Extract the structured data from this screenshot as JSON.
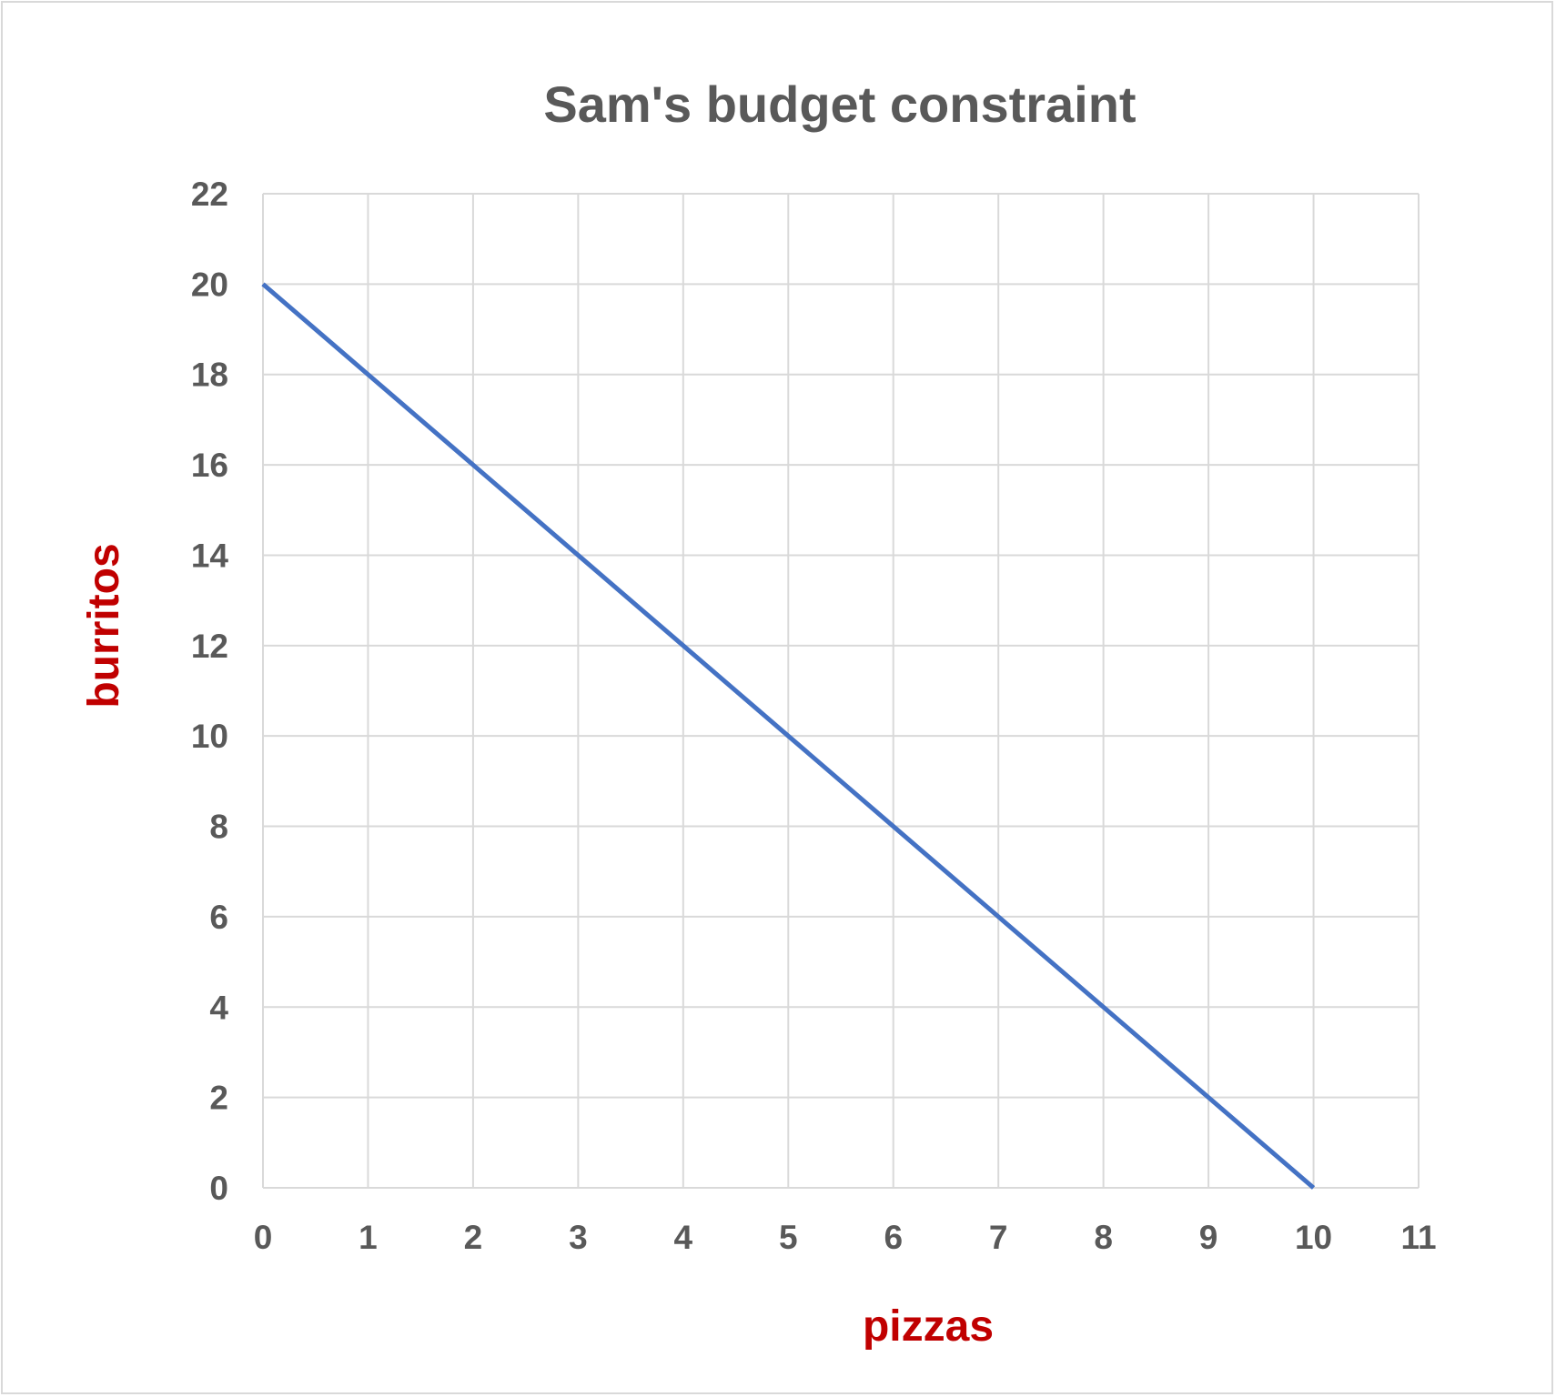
{
  "chart_data": {
    "type": "line",
    "title": "Sam's budget constraint",
    "xlabel": "pizzas",
    "ylabel": "burritos",
    "xlim": [
      0,
      11
    ],
    "ylim": [
      0,
      22
    ],
    "x_ticks": [
      "0",
      "1",
      "2",
      "3",
      "4",
      "5",
      "6",
      "7",
      "8",
      "9",
      "10",
      "11"
    ],
    "y_ticks": [
      "0",
      "2",
      "4",
      "6",
      "8",
      "10",
      "12",
      "14",
      "16",
      "18",
      "20",
      "22"
    ],
    "grid": true,
    "legend": "none",
    "series": [
      {
        "x": [
          0,
          1,
          2,
          3,
          4,
          5,
          6,
          7,
          8,
          9,
          10
        ],
        "y": [
          20,
          18,
          16,
          14,
          12,
          10,
          8,
          6,
          4,
          2,
          0
        ],
        "color": "#4472c4"
      }
    ],
    "colors": {
      "title": "#595959",
      "tick_labels": "#595959",
      "axis_titles": "#c00000",
      "grid": "#d9d9d9",
      "line": "#4472c4"
    }
  }
}
